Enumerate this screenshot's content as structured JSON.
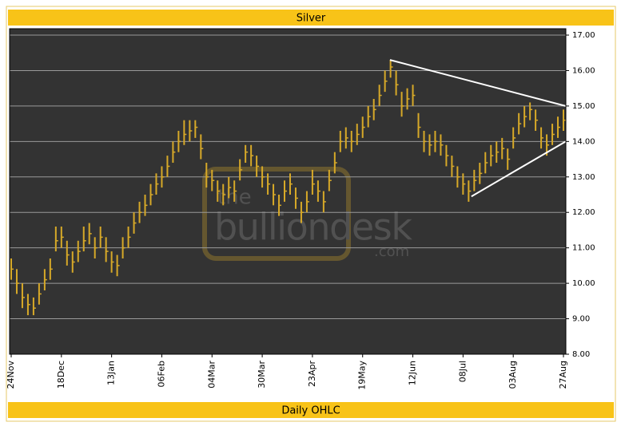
{
  "chart_data": {
    "type": "hlc",
    "title": "Silver",
    "subtitle": "Daily OHLC",
    "watermark": [
      "the",
      "bulliondesk",
      ".com"
    ],
    "categories": [
      "24Nov",
      null,
      null,
      null,
      null,
      null,
      null,
      null,
      null,
      "18Dec",
      null,
      null,
      null,
      null,
      null,
      null,
      null,
      null,
      "13Jan",
      null,
      null,
      null,
      null,
      null,
      null,
      null,
      null,
      "06Feb",
      null,
      null,
      null,
      null,
      null,
      null,
      null,
      null,
      "04Mar",
      null,
      null,
      null,
      null,
      null,
      null,
      null,
      null,
      "30Mar",
      null,
      null,
      null,
      null,
      null,
      null,
      null,
      null,
      "23Apr",
      null,
      null,
      null,
      null,
      null,
      null,
      null,
      null,
      "19May",
      null,
      null,
      null,
      null,
      null,
      null,
      null,
      null,
      "12Jun",
      null,
      null,
      null,
      null,
      null,
      null,
      null,
      null,
      "08Jul",
      null,
      null,
      null,
      null,
      null,
      null,
      null,
      null,
      "03Aug",
      null,
      null,
      null,
      null,
      null,
      null,
      null,
      null,
      "27Aug"
    ],
    "high": [
      10.7,
      10.4,
      10.0,
      9.7,
      9.6,
      10.0,
      10.4,
      10.7,
      11.6,
      11.6,
      11.2,
      10.9,
      11.2,
      11.6,
      11.7,
      11.3,
      11.6,
      11.3,
      10.9,
      10.8,
      11.3,
      11.6,
      12.0,
      12.3,
      12.5,
      12.8,
      13.1,
      13.3,
      13.6,
      14.0,
      14.3,
      14.6,
      14.6,
      14.6,
      14.2,
      13.4,
      13.2,
      12.9,
      12.8,
      13.0,
      12.9,
      13.5,
      13.9,
      13.9,
      13.6,
      13.3,
      13.1,
      12.8,
      12.5,
      12.9,
      13.1,
      12.7,
      12.3,
      12.6,
      13.2,
      12.9,
      12.6,
      13.2,
      13.7,
      14.3,
      14.4,
      14.3,
      14.5,
      14.7,
      15.0,
      15.2,
      15.6,
      16.0,
      16.3,
      16.0,
      15.4,
      15.5,
      15.6,
      14.8,
      14.3,
      14.2,
      14.3,
      14.2,
      13.9,
      13.6,
      13.3,
      13.1,
      12.9,
      13.2,
      13.4,
      13.7,
      13.9,
      14.0,
      14.1,
      13.8,
      14.4,
      14.8,
      15.0,
      15.1,
      14.9,
      14.4,
      14.2,
      14.5,
      14.7,
      14.9
    ],
    "low": [
      10.1,
      9.7,
      9.3,
      9.1,
      9.1,
      9.4,
      9.8,
      10.1,
      10.9,
      11.0,
      10.5,
      10.3,
      10.6,
      10.9,
      11.1,
      10.7,
      11.0,
      10.6,
      10.3,
      10.2,
      10.7,
      11.0,
      11.4,
      11.7,
      11.9,
      12.2,
      12.5,
      12.7,
      13.0,
      13.4,
      13.7,
      13.9,
      14.0,
      14.1,
      13.5,
      12.7,
      12.6,
      12.3,
      12.2,
      12.4,
      12.3,
      12.9,
      13.4,
      13.3,
      13.0,
      12.7,
      12.5,
      12.2,
      11.9,
      12.3,
      12.5,
      12.1,
      11.7,
      12.0,
      12.5,
      12.3,
      12.0,
      12.6,
      13.1,
      13.7,
      13.8,
      13.7,
      13.9,
      14.1,
      14.4,
      14.6,
      15.0,
      15.4,
      15.8,
      15.3,
      14.7,
      14.9,
      15.0,
      14.1,
      13.7,
      13.6,
      13.7,
      13.6,
      13.3,
      13.0,
      12.7,
      12.5,
      12.3,
      12.6,
      12.8,
      13.1,
      13.3,
      13.4,
      13.5,
      13.2,
      13.8,
      14.2,
      14.4,
      14.6,
      14.3,
      13.8,
      13.6,
      13.9,
      14.1,
      14.3
    ],
    "close": [
      10.4,
      10.0,
      9.6,
      9.4,
      9.3,
      9.7,
      10.1,
      10.4,
      11.2,
      11.3,
      10.8,
      10.6,
      10.9,
      11.2,
      11.4,
      11.0,
      11.3,
      10.9,
      10.6,
      10.5,
      11.0,
      11.3,
      11.7,
      12.0,
      12.2,
      12.5,
      12.8,
      13.0,
      13.3,
      13.7,
      14.0,
      14.2,
      14.3,
      14.4,
      13.8,
      13.0,
      12.9,
      12.6,
      12.5,
      12.7,
      12.6,
      13.2,
      13.7,
      13.6,
      13.3,
      13.0,
      12.8,
      12.5,
      12.2,
      12.6,
      12.8,
      12.4,
      12.0,
      12.3,
      12.8,
      12.6,
      12.3,
      12.9,
      13.4,
      14.0,
      14.1,
      14.0,
      14.2,
      14.4,
      14.7,
      14.9,
      15.3,
      15.7,
      16.1,
      15.6,
      15.0,
      15.2,
      15.3,
      14.4,
      14.0,
      13.9,
      14.0,
      13.9,
      13.6,
      13.3,
      13.0,
      12.8,
      12.6,
      12.9,
      13.1,
      13.4,
      13.6,
      13.7,
      13.8,
      13.5,
      14.1,
      14.5,
      14.7,
      14.9,
      14.6,
      14.1,
      13.9,
      14.2,
      14.4,
      14.6
    ],
    "color": "#d7a928",
    "trendlines": [
      {
        "x": [
          67.9,
          99.4
        ],
        "y": [
          16.3,
          15.0
        ]
      },
      {
        "x": [
          82.5,
          99.4
        ],
        "y": [
          12.45,
          14.0
        ]
      }
    ],
    "ylim": [
      8,
      17.18
    ],
    "yticks": [
      {
        "value": 8,
        "label": "8.00"
      },
      {
        "value": 9,
        "label": "9.00"
      },
      {
        "value": 10,
        "label": "10.00"
      },
      {
        "value": 11,
        "label": "11.00"
      },
      {
        "value": 12,
        "label": "12.00"
      },
      {
        "value": 13,
        "label": "13.00"
      },
      {
        "value": 14,
        "label": "14.00"
      },
      {
        "value": 15,
        "label": "15.00"
      },
      {
        "value": 16,
        "label": "16.00"
      },
      {
        "value": 17,
        "label": "17.00"
      }
    ],
    "grid": true
  }
}
